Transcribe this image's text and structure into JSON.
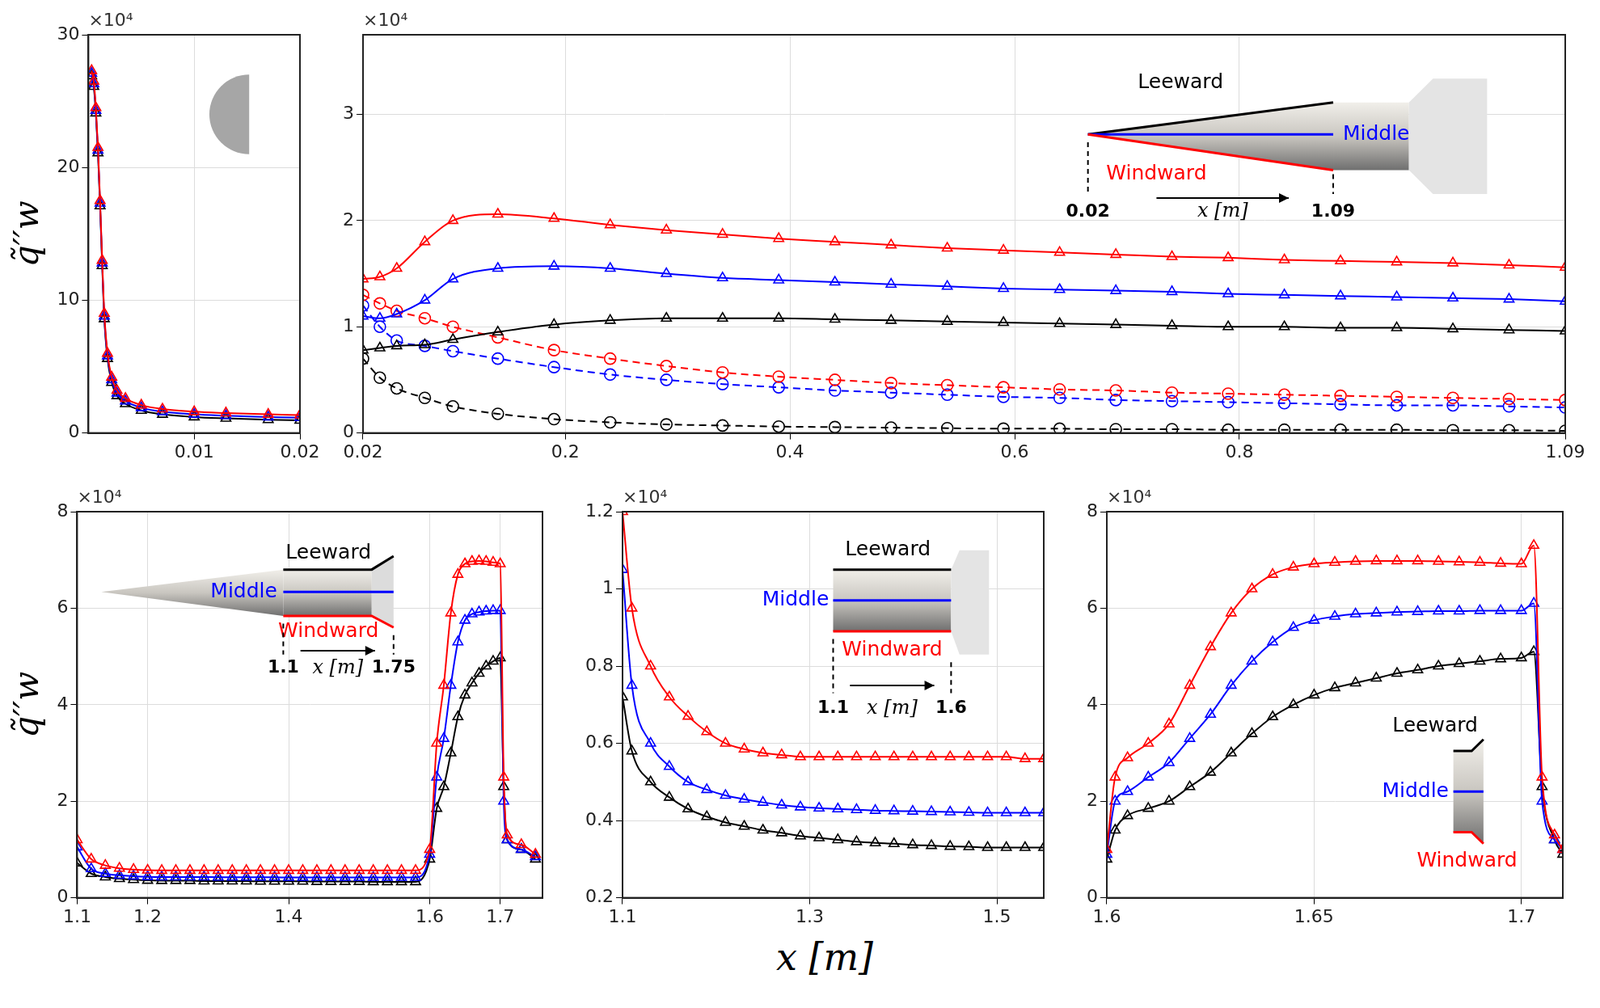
{
  "chart_data": [
    {
      "type": "line",
      "ylabel": "q̃′′w",
      "y_multiplier": "×10⁴",
      "grid": true,
      "xlim": [
        0,
        0.02
      ],
      "xticks": [
        0.01,
        0.02
      ],
      "ylim": [
        0,
        30
      ],
      "yticks": [
        0,
        10,
        20,
        30
      ],
      "x": [
        0.0003,
        0.0005,
        0.0007,
        0.0009,
        0.0011,
        0.0013,
        0.0015,
        0.0018,
        0.0022,
        0.0027,
        0.0035,
        0.005,
        0.007,
        0.01,
        0.013,
        0.017,
        0.02
      ],
      "series": [
        {
          "name": "Windward",
          "color": "#ff0000",
          "marker": "triangle",
          "line_style": "solid",
          "values": [
            27.3,
            26.5,
            24.5,
            21.5,
            17.5,
            13,
            9,
            6,
            4.2,
            3.2,
            2.6,
            2.1,
            1.8,
            1.6,
            1.5,
            1.4,
            1.35
          ]
        },
        {
          "name": "Middle",
          "color": "#0000ff",
          "marker": "triangle",
          "line_style": "solid",
          "values": [
            27.1,
            26.3,
            24.3,
            21.3,
            17.3,
            12.8,
            8.8,
            5.8,
            4.0,
            3.0,
            2.4,
            1.9,
            1.6,
            1.4,
            1.3,
            1.2,
            1.15
          ]
        },
        {
          "name": "Leeward",
          "color": "#000000",
          "marker": "triangle",
          "line_style": "solid",
          "values": [
            26.9,
            26.1,
            24.1,
            21.1,
            17.1,
            12.6,
            8.6,
            5.6,
            3.8,
            2.8,
            2.2,
            1.7,
            1.4,
            1.2,
            1.1,
            1.0,
            0.95
          ]
        }
      ]
    },
    {
      "type": "line",
      "y_multiplier": "×10⁴",
      "grid": true,
      "xlim": [
        0.02,
        1.09
      ],
      "xticks": [
        0.02,
        0.2,
        0.4,
        0.6,
        0.8,
        1.09
      ],
      "ylim": [
        0,
        3.75
      ],
      "yticks": [
        0,
        1,
        2,
        3
      ],
      "inset": {
        "x_start": 0.02,
        "x_end": 1.09,
        "x_label": "x [m]"
      },
      "x": [
        0.02,
        0.035,
        0.05,
        0.075,
        0.1,
        0.14,
        0.19,
        0.24,
        0.29,
        0.34,
        0.39,
        0.44,
        0.49,
        0.54,
        0.59,
        0.64,
        0.69,
        0.74,
        0.79,
        0.84,
        0.89,
        0.94,
        0.99,
        1.04,
        1.09
      ],
      "series": [
        {
          "name": "Windward",
          "color": "#ff0000",
          "marker": "triangle",
          "line_style": "solid",
          "values": [
            1.45,
            1.47,
            1.55,
            1.8,
            2.0,
            2.06,
            2.02,
            1.96,
            1.91,
            1.87,
            1.83,
            1.8,
            1.77,
            1.74,
            1.72,
            1.7,
            1.68,
            1.66,
            1.65,
            1.63,
            1.62,
            1.61,
            1.6,
            1.58,
            1.56
          ]
        },
        {
          "name": "Middle",
          "color": "#0000ff",
          "marker": "triangle",
          "line_style": "solid",
          "values": [
            1.1,
            1.08,
            1.12,
            1.25,
            1.45,
            1.55,
            1.57,
            1.55,
            1.5,
            1.46,
            1.44,
            1.42,
            1.4,
            1.38,
            1.36,
            1.35,
            1.34,
            1.33,
            1.31,
            1.3,
            1.29,
            1.28,
            1.27,
            1.26,
            1.24
          ]
        },
        {
          "name": "Leeward",
          "color": "#000000",
          "marker": "triangle",
          "line_style": "solid",
          "values": [
            0.78,
            0.8,
            0.82,
            0.83,
            0.88,
            0.95,
            1.02,
            1.06,
            1.08,
            1.08,
            1.08,
            1.07,
            1.06,
            1.05,
            1.04,
            1.03,
            1.02,
            1.01,
            1.0,
            1.0,
            0.99,
            0.99,
            0.98,
            0.97,
            0.96
          ]
        },
        {
          "name": "Windward",
          "color": "#ff0000",
          "marker": "circle",
          "line_style": "dashed",
          "values": [
            1.3,
            1.22,
            1.15,
            1.08,
            1.0,
            0.9,
            0.78,
            0.7,
            0.63,
            0.57,
            0.53,
            0.5,
            0.47,
            0.45,
            0.43,
            0.41,
            0.4,
            0.38,
            0.37,
            0.36,
            0.35,
            0.34,
            0.33,
            0.32,
            0.31
          ]
        },
        {
          "name": "Middle",
          "color": "#0000ff",
          "marker": "circle",
          "line_style": "dashed",
          "values": [
            1.2,
            1.0,
            0.87,
            0.82,
            0.77,
            0.7,
            0.62,
            0.55,
            0.5,
            0.46,
            0.43,
            0.4,
            0.38,
            0.36,
            0.34,
            0.33,
            0.31,
            0.3,
            0.29,
            0.28,
            0.27,
            0.26,
            0.26,
            0.25,
            0.24
          ]
        },
        {
          "name": "Leeward",
          "color": "#000000",
          "marker": "circle",
          "line_style": "dashed",
          "values": [
            0.7,
            0.52,
            0.42,
            0.33,
            0.25,
            0.18,
            0.13,
            0.1,
            0.08,
            0.07,
            0.06,
            0.055,
            0.05,
            0.045,
            0.04,
            0.04,
            0.035,
            0.035,
            0.03,
            0.03,
            0.03,
            0.03,
            0.025,
            0.025,
            0.02
          ]
        }
      ]
    },
    {
      "type": "line",
      "ylabel": "q̃′′w",
      "y_multiplier": "×10⁴",
      "grid": true,
      "xlim": [
        1.1,
        1.76
      ],
      "xticks": [
        1.1,
        1.2,
        1.4,
        1.6,
        1.7
      ],
      "ylim": [
        0,
        8
      ],
      "yticks": [
        0,
        2,
        4,
        6,
        8
      ],
      "inset": {
        "x_start": 1.1,
        "x_end": 1.75,
        "x_label": "x [m]"
      },
      "x": [
        1.1,
        1.12,
        1.14,
        1.16,
        1.18,
        1.2,
        1.22,
        1.24,
        1.26,
        1.28,
        1.3,
        1.32,
        1.34,
        1.36,
        1.38,
        1.4,
        1.42,
        1.44,
        1.46,
        1.48,
        1.5,
        1.52,
        1.54,
        1.56,
        1.58,
        1.6,
        1.61,
        1.62,
        1.63,
        1.64,
        1.65,
        1.66,
        1.67,
        1.68,
        1.69,
        1.7,
        1.705,
        1.71,
        1.73,
        1.75
      ],
      "series": [
        {
          "name": "Windward",
          "color": "#ff0000",
          "marker": "triangle",
          "line_style": "solid",
          "values": [
            1.2,
            0.8,
            0.67,
            0.61,
            0.585,
            0.57,
            0.565,
            0.565,
            0.565,
            0.565,
            0.565,
            0.565,
            0.565,
            0.565,
            0.565,
            0.565,
            0.565,
            0.565,
            0.565,
            0.565,
            0.565,
            0.565,
            0.565,
            0.565,
            0.565,
            1.0,
            3.2,
            4.4,
            5.9,
            6.7,
            6.92,
            6.97,
            6.98,
            6.97,
            6.95,
            6.92,
            2.5,
            1.3,
            1.1,
            0.9
          ]
        },
        {
          "name": "Middle",
          "color": "#0000ff",
          "marker": "triangle",
          "line_style": "solid",
          "values": [
            1.05,
            0.6,
            0.5,
            0.465,
            0.447,
            0.435,
            0.43,
            0.43,
            0.43,
            0.43,
            0.425,
            0.425,
            0.425,
            0.425,
            0.425,
            0.42,
            0.42,
            0.42,
            0.42,
            0.42,
            0.42,
            0.42,
            0.42,
            0.42,
            0.42,
            0.9,
            2.5,
            3.3,
            4.4,
            5.3,
            5.75,
            5.88,
            5.92,
            5.94,
            5.95,
            5.95,
            2.0,
            1.2,
            1.0,
            0.85
          ]
        },
        {
          "name": "Leeward",
          "color": "#000000",
          "marker": "triangle",
          "line_style": "solid",
          "values": [
            0.72,
            0.5,
            0.43,
            0.395,
            0.375,
            0.36,
            0.355,
            0.355,
            0.355,
            0.345,
            0.345,
            0.345,
            0.345,
            0.34,
            0.34,
            0.34,
            0.34,
            0.335,
            0.335,
            0.335,
            0.335,
            0.33,
            0.33,
            0.33,
            0.33,
            0.8,
            1.85,
            2.3,
            3.0,
            3.75,
            4.2,
            4.45,
            4.65,
            4.8,
            4.9,
            4.97,
            2.3,
            1.2,
            1.0,
            0.8
          ]
        }
      ]
    },
    {
      "type": "line",
      "xlabel": "x [m]",
      "y_multiplier": "×10⁴",
      "grid": true,
      "xlim": [
        1.1,
        1.55
      ],
      "xticks": [
        1.1,
        1.3,
        1.5
      ],
      "ylim": [
        0.2,
        1.2
      ],
      "yticks": [
        0.2,
        0.4,
        0.6,
        0.8,
        1,
        1.2
      ],
      "inset": {
        "x_start": 1.1,
        "x_end": 1.6,
        "x_label": "x [m]"
      },
      "x": [
        1.1,
        1.11,
        1.13,
        1.15,
        1.17,
        1.19,
        1.21,
        1.23,
        1.25,
        1.27,
        1.29,
        1.31,
        1.33,
        1.35,
        1.37,
        1.39,
        1.41,
        1.43,
        1.45,
        1.47,
        1.49,
        1.51,
        1.53,
        1.55
      ],
      "series": [
        {
          "name": "Windward",
          "color": "#ff0000",
          "marker": "triangle",
          "line_style": "solid",
          "values": [
            1.2,
            0.95,
            0.8,
            0.72,
            0.67,
            0.63,
            0.6,
            0.585,
            0.575,
            0.57,
            0.565,
            0.565,
            0.565,
            0.565,
            0.565,
            0.565,
            0.565,
            0.565,
            0.565,
            0.565,
            0.565,
            0.565,
            0.56,
            0.56
          ]
        },
        {
          "name": "Middle",
          "color": "#0000ff",
          "marker": "triangle",
          "line_style": "solid",
          "values": [
            1.05,
            0.75,
            0.6,
            0.54,
            0.5,
            0.48,
            0.465,
            0.455,
            0.447,
            0.44,
            0.435,
            0.432,
            0.43,
            0.428,
            0.426,
            0.425,
            0.424,
            0.423,
            0.422,
            0.421,
            0.42,
            0.42,
            0.42,
            0.42
          ]
        },
        {
          "name": "Leeward",
          "color": "#000000",
          "marker": "triangle",
          "line_style": "solid",
          "values": [
            0.72,
            0.58,
            0.5,
            0.46,
            0.43,
            0.41,
            0.395,
            0.385,
            0.375,
            0.368,
            0.36,
            0.355,
            0.35,
            0.345,
            0.342,
            0.34,
            0.337,
            0.335,
            0.333,
            0.332,
            0.33,
            0.33,
            0.33,
            0.33
          ]
        }
      ]
    },
    {
      "type": "line",
      "y_multiplier": "×10⁴",
      "grid": true,
      "xlim": [
        1.6,
        1.71
      ],
      "xticks": [
        1.6,
        1.65,
        1.7
      ],
      "ylim": [
        0,
        8
      ],
      "yticks": [
        0,
        2,
        4,
        6,
        8
      ],
      "x": [
        1.6,
        1.602,
        1.605,
        1.61,
        1.615,
        1.62,
        1.625,
        1.63,
        1.635,
        1.64,
        1.645,
        1.65,
        1.655,
        1.66,
        1.665,
        1.67,
        1.675,
        1.68,
        1.685,
        1.69,
        1.695,
        1.7,
        1.703,
        1.705,
        1.708,
        1.71
      ],
      "series": [
        {
          "name": "Windward",
          "color": "#ff0000",
          "marker": "triangle",
          "line_style": "solid",
          "values": [
            1.0,
            2.5,
            2.9,
            3.2,
            3.6,
            4.4,
            5.2,
            5.9,
            6.4,
            6.7,
            6.85,
            6.92,
            6.95,
            6.97,
            6.98,
            6.98,
            6.98,
            6.97,
            6.96,
            6.95,
            6.93,
            6.92,
            7.3,
            2.5,
            1.3,
            1.0
          ]
        },
        {
          "name": "Middle",
          "color": "#0000ff",
          "marker": "triangle",
          "line_style": "solid",
          "values": [
            0.9,
            2.0,
            2.2,
            2.5,
            2.8,
            3.3,
            3.8,
            4.4,
            4.9,
            5.3,
            5.6,
            5.75,
            5.83,
            5.88,
            5.9,
            5.92,
            5.93,
            5.94,
            5.94,
            5.95,
            5.95,
            5.95,
            6.1,
            2.0,
            1.2,
            1.0
          ]
        },
        {
          "name": "Leeward",
          "color": "#000000",
          "marker": "triangle",
          "line_style": "solid",
          "values": [
            0.8,
            1.4,
            1.7,
            1.85,
            2.0,
            2.3,
            2.6,
            3.0,
            3.4,
            3.75,
            4.0,
            4.2,
            4.35,
            4.45,
            4.55,
            4.65,
            4.72,
            4.8,
            4.85,
            4.9,
            4.95,
            4.97,
            5.1,
            2.3,
            1.2,
            0.9
          ]
        }
      ]
    }
  ]
}
